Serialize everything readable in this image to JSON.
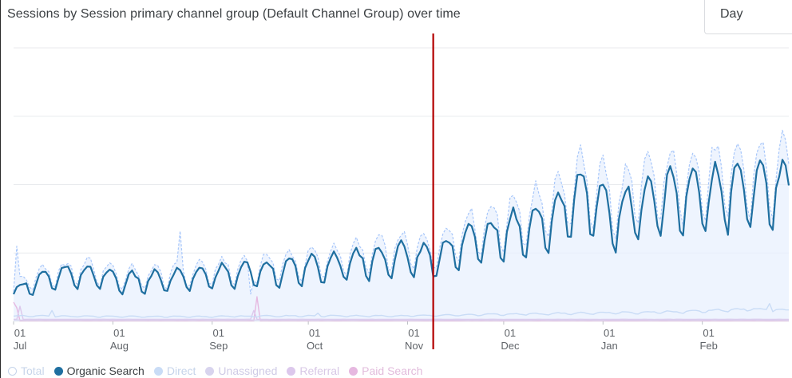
{
  "header": {
    "title": "Sessions by Session primary channel group (Default Channel Group) over time",
    "granularity": "Day"
  },
  "colors": {
    "total_line": "#a8c7fa",
    "total_fill": "#e8f0fe",
    "organic": "#1a73e8",
    "organic_dark": "#1f6fa0",
    "direct": "#c9dcf6",
    "unassigned": "#d8d4ee",
    "referral": "#dcc8ec",
    "paid": "#e6b8e0",
    "grid": "#e8eaed",
    "marker": "#b30000"
  },
  "legend": [
    {
      "label": "Total",
      "key": "total"
    },
    {
      "label": "Organic Search",
      "key": "organic"
    },
    {
      "label": "Direct",
      "key": "direct"
    },
    {
      "label": "Unassigned",
      "key": "unassigned"
    },
    {
      "label": "Referral",
      "key": "referral"
    },
    {
      "label": "Paid Search",
      "key": "paid"
    }
  ],
  "chart_data": {
    "type": "line",
    "title": "Sessions by Session primary channel group (Default Channel Group) over time",
    "xlabel": "",
    "ylabel": "",
    "grid": true,
    "ylim": [
      0,
      400
    ],
    "x_range": [
      "Jul 01",
      "Feb 28"
    ],
    "x_ticks": [
      {
        "day": "01",
        "month": "Jul",
        "index": 0
      },
      {
        "day": "01",
        "month": "Aug",
        "index": 31
      },
      {
        "day": "01",
        "month": "Sep",
        "index": 62
      },
      {
        "day": "01",
        "month": "Oct",
        "index": 92
      },
      {
        "day": "01",
        "month": "Nov",
        "index": 123
      },
      {
        "day": "01",
        "month": "Dec",
        "index": 153
      },
      {
        "day": "01",
        "month": "Jan",
        "index": 184
      },
      {
        "day": "01",
        "month": "Feb",
        "index": 215
      }
    ],
    "annotation": {
      "type": "vertical-line",
      "index": 131,
      "color": "#b30000"
    },
    "series": [
      {
        "name": "Total",
        "key": "total",
        "weekly_shape": [
          1.0,
          1.18,
          1.26,
          1.2,
          1.06,
          0.78,
          0.72
        ],
        "level_anchors": [
          [
            0,
            45
          ],
          [
            5,
            62
          ],
          [
            15,
            72
          ],
          [
            25,
            74
          ],
          [
            35,
            64
          ],
          [
            45,
            66
          ],
          [
            55,
            70
          ],
          [
            65,
            74
          ],
          [
            75,
            78
          ],
          [
            85,
            82
          ],
          [
            95,
            86
          ],
          [
            105,
            94
          ],
          [
            115,
            100
          ],
          [
            125,
            106
          ],
          [
            131,
            102
          ],
          [
            140,
            128
          ],
          [
            150,
            140
          ],
          [
            160,
            154
          ],
          [
            170,
            170
          ],
          [
            175,
            198
          ],
          [
            184,
            190
          ],
          [
            188,
            166
          ],
          [
            195,
            194
          ],
          [
            205,
            200
          ],
          [
            215,
            206
          ],
          [
            225,
            208
          ],
          [
            235,
            212
          ],
          [
            242,
            212
          ]
        ],
        "spikes": [
          [
            1,
            110
          ],
          [
            16,
            82
          ],
          [
            52,
            132
          ],
          [
            74,
            40
          ]
        ]
      },
      {
        "name": "Organic Search",
        "key": "organic",
        "weekly_shape": [
          1.0,
          1.18,
          1.26,
          1.2,
          1.06,
          0.78,
          0.72
        ],
        "level_anchors": [
          [
            0,
            38
          ],
          [
            5,
            54
          ],
          [
            15,
            64
          ],
          [
            25,
            66
          ],
          [
            35,
            56
          ],
          [
            45,
            58
          ],
          [
            55,
            62
          ],
          [
            65,
            66
          ],
          [
            75,
            70
          ],
          [
            85,
            72
          ],
          [
            95,
            76
          ],
          [
            105,
            82
          ],
          [
            115,
            88
          ],
          [
            125,
            92
          ],
          [
            131,
            88
          ],
          [
            140,
            110
          ],
          [
            150,
            120
          ],
          [
            160,
            132
          ],
          [
            170,
            146
          ],
          [
            175,
            176
          ],
          [
            184,
            166
          ],
          [
            188,
            140
          ],
          [
            195,
            170
          ],
          [
            205,
            176
          ],
          [
            215,
            182
          ],
          [
            225,
            184
          ],
          [
            235,
            186
          ],
          [
            242,
            186
          ]
        ],
        "spikes": []
      },
      {
        "name": "Direct",
        "key": "direct",
        "weekly_shape": [
          1.0,
          1.08,
          1.1,
          1.06,
          1.02,
          0.9,
          0.86
        ],
        "level_anchors": [
          [
            0,
            8
          ],
          [
            30,
            7
          ],
          [
            60,
            7
          ],
          [
            90,
            8
          ],
          [
            120,
            8
          ],
          [
            150,
            10
          ],
          [
            180,
            12
          ],
          [
            210,
            14
          ],
          [
            230,
            18
          ],
          [
            242,
            16
          ]
        ],
        "spikes": [
          [
            12,
            16
          ],
          [
            95,
            12
          ],
          [
            236,
            26
          ]
        ]
      },
      {
        "name": "Unassigned",
        "key": "unassigned",
        "weekly_shape": [
          1,
          1,
          1,
          1,
          1,
          1,
          1
        ],
        "level_anchors": [
          [
            0,
            2
          ],
          [
            242,
            2
          ]
        ],
        "spikes": []
      },
      {
        "name": "Referral",
        "key": "referral",
        "weekly_shape": [
          1,
          1,
          1,
          1,
          1,
          1,
          1
        ],
        "level_anchors": [
          [
            0,
            3
          ],
          [
            242,
            3
          ]
        ],
        "spikes": [
          [
            2,
            22
          ],
          [
            75,
            16
          ]
        ]
      },
      {
        "name": "Paid Search",
        "key": "paid",
        "weekly_shape": [
          1,
          1,
          1,
          1,
          1,
          1,
          1
        ],
        "level_anchors": [
          [
            0,
            1
          ],
          [
            242,
            1
          ]
        ],
        "spikes": [
          [
            0,
            28
          ],
          [
            1,
            20
          ],
          [
            76,
            36
          ]
        ]
      }
    ]
  }
}
